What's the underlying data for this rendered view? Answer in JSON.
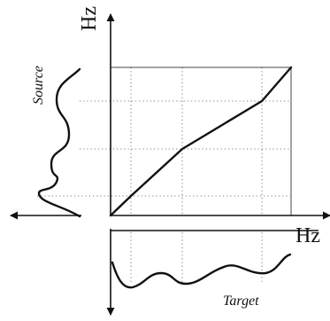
{
  "labels": {
    "y_axis": "Hz",
    "x_axis": "Hz",
    "source": "Source",
    "target": "Target"
  }
}
